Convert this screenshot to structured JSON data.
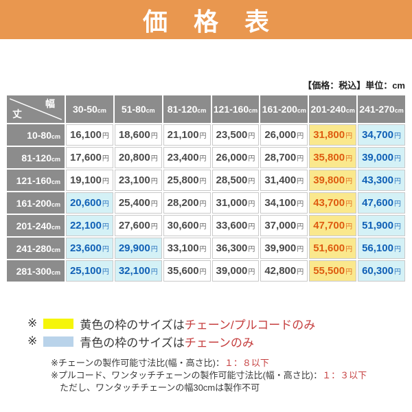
{
  "banner": {
    "title": "価 格 表"
  },
  "meta_note": "【価格：税込】単位：cm",
  "table": {
    "corner": {
      "top_right": "幅",
      "bottom_left": "丈"
    },
    "unit": "cm",
    "yen": "円",
    "columns": [
      "30-50",
      "51-80",
      "81-120",
      "121-160",
      "161-200",
      "201-240",
      "241-270"
    ],
    "row_labels": [
      "10-80",
      "81-120",
      "121-160",
      "161-200",
      "201-240",
      "241-280",
      "281-300"
    ],
    "cells": [
      [
        {
          "v": "16,100"
        },
        {
          "v": "18,600"
        },
        {
          "v": "21,100"
        },
        {
          "v": "23,500"
        },
        {
          "v": "26,000"
        },
        {
          "v": "31,800",
          "hl": "yellow"
        },
        {
          "v": "34,700",
          "hl": "blue"
        }
      ],
      [
        {
          "v": "17,600"
        },
        {
          "v": "20,800"
        },
        {
          "v": "23,400"
        },
        {
          "v": "26,000"
        },
        {
          "v": "28,700"
        },
        {
          "v": "35,800",
          "hl": "yellow"
        },
        {
          "v": "39,000",
          "hl": "blue"
        }
      ],
      [
        {
          "v": "19,100"
        },
        {
          "v": "23,100"
        },
        {
          "v": "25,800"
        },
        {
          "v": "28,500"
        },
        {
          "v": "31,400"
        },
        {
          "v": "39,800",
          "hl": "yellow"
        },
        {
          "v": "43,300",
          "hl": "blue"
        }
      ],
      [
        {
          "v": "20,600",
          "hl": "blue"
        },
        {
          "v": "25,400"
        },
        {
          "v": "28,200"
        },
        {
          "v": "31,000"
        },
        {
          "v": "34,100"
        },
        {
          "v": "43,700",
          "hl": "yellow"
        },
        {
          "v": "47,600",
          "hl": "blue"
        }
      ],
      [
        {
          "v": "22,100",
          "hl": "blue"
        },
        {
          "v": "27,600"
        },
        {
          "v": "30,600"
        },
        {
          "v": "33,600"
        },
        {
          "v": "37,000"
        },
        {
          "v": "47,700",
          "hl": "yellow"
        },
        {
          "v": "51,900",
          "hl": "blue"
        }
      ],
      [
        {
          "v": "23,600",
          "hl": "blue"
        },
        {
          "v": "29,900",
          "hl": "blue"
        },
        {
          "v": "33,100"
        },
        {
          "v": "36,300"
        },
        {
          "v": "39,900"
        },
        {
          "v": "51,600",
          "hl": "yellow"
        },
        {
          "v": "56,100",
          "hl": "blue"
        }
      ],
      [
        {
          "v": "25,100",
          "hl": "blue"
        },
        {
          "v": "32,100",
          "hl": "blue"
        },
        {
          "v": "35,600"
        },
        {
          "v": "39,000"
        },
        {
          "v": "42,800"
        },
        {
          "v": "55,500",
          "hl": "yellow"
        },
        {
          "v": "60,300",
          "hl": "blue"
        }
      ]
    ]
  },
  "legend": [
    {
      "marker": "※",
      "swatch": "#F5F50A",
      "text": "黄色の枠のサイズは",
      "highlight": "チェーン/プルコードのみ"
    },
    {
      "marker": "※",
      "swatch": "#B9D3EA",
      "text": "青色の枠のサイズは",
      "highlight": "チェーンのみ"
    }
  ],
  "notes": [
    {
      "text": "※チェーンの製作可能寸法比(幅・高さ比)：",
      "highlight": "１：８以下"
    },
    {
      "text": "※プルコード、ワンタッチチェーンの製作可能寸法比(幅・高さ比)：",
      "highlight": "１：３以下"
    },
    {
      "text": "ただし、ワンタッチチェーンの幅30cmは製作不可",
      "highlight": ""
    }
  ],
  "colors": {
    "banner_bg": "#E9974F",
    "header_bg": "#8C8C8C",
    "yellow_cell_bg": "#FAE88D",
    "yellow_cell_text": "#DE5B10",
    "blue_cell_bg": "#D4F1F6",
    "blue_cell_text": "#1060B6",
    "normal_cell_text": "#4A4A4A",
    "red_note_text": "#C53E3E",
    "legend_yellow_swatch": "#F5F50A",
    "legend_blue_swatch": "#B9D3EA"
  }
}
